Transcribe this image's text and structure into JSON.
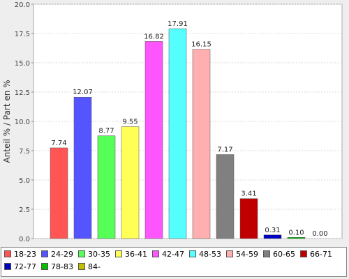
{
  "chart_data": {
    "type": "bar",
    "ylabel": "Anteil % / Part en %",
    "ylim": [
      0,
      20
    ],
    "y_ticks": [
      "0.0",
      "2.5",
      "5.0",
      "7.5",
      "10.0",
      "12.5",
      "15.0",
      "17.5",
      "20.0"
    ],
    "grid": true,
    "legend_position": "bottom",
    "categories": [
      "18-23",
      "24-29",
      "30-35",
      "36-41",
      "42-47",
      "48-53",
      "54-59",
      "60-65",
      "66-71",
      "72-77",
      "78-83",
      "84-"
    ],
    "values": [
      7.74,
      12.07,
      8.77,
      9.55,
      16.82,
      17.91,
      16.15,
      7.17,
      3.41,
      0.31,
      0.1,
      0.0
    ],
    "value_labels": [
      "7.74",
      "12.07",
      "8.77",
      "9.55",
      "16.82",
      "17.91",
      "16.15",
      "7.17",
      "3.41",
      "0.31",
      "0.10",
      "0.00"
    ],
    "colors": [
      "#ff5555",
      "#5555ff",
      "#55ff55",
      "#ffff55",
      "#ff55ff",
      "#55ffff",
      "#ffafaf",
      "#808080",
      "#c00000",
      "#0000c0",
      "#00c000",
      "#c0c000"
    ]
  }
}
